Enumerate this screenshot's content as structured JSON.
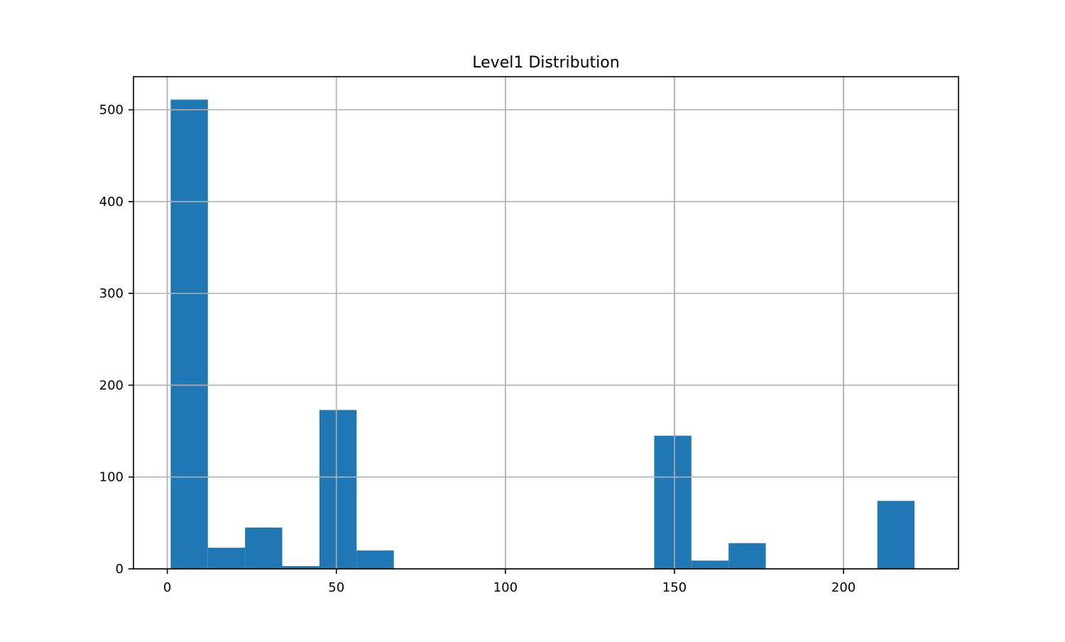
{
  "chart_data": {
    "type": "bar",
    "title": "Level1 Distribution",
    "xlabel": "",
    "ylabel": "",
    "xlim": [
      -10,
      234
    ],
    "ylim": [
      0,
      536
    ],
    "grid": true,
    "bar_color": "#1f77b4",
    "grid_color": "#b0b0b0",
    "bins": [
      {
        "x0": 1,
        "x1": 12,
        "value": 511
      },
      {
        "x0": 12,
        "x1": 23,
        "value": 23
      },
      {
        "x0": 23,
        "x1": 34,
        "value": 45
      },
      {
        "x0": 34,
        "x1": 45,
        "value": 3
      },
      {
        "x0": 45,
        "x1": 56,
        "value": 173
      },
      {
        "x0": 56,
        "x1": 67,
        "value": 20
      },
      {
        "x0": 67,
        "x1": 78,
        "value": 0
      },
      {
        "x0": 78,
        "x1": 89,
        "value": 0
      },
      {
        "x0": 89,
        "x1": 100,
        "value": 0
      },
      {
        "x0": 100,
        "x1": 111,
        "value": 0
      },
      {
        "x0": 111,
        "x1": 122,
        "value": 0
      },
      {
        "x0": 122,
        "x1": 133,
        "value": 0
      },
      {
        "x0": 133,
        "x1": 144,
        "value": 0
      },
      {
        "x0": 144,
        "x1": 155,
        "value": 145
      },
      {
        "x0": 155,
        "x1": 166,
        "value": 9
      },
      {
        "x0": 166,
        "x1": 177,
        "value": 28
      },
      {
        "x0": 177,
        "x1": 188,
        "value": 0
      },
      {
        "x0": 188,
        "x1": 199,
        "value": 0
      },
      {
        "x0": 199,
        "x1": 210,
        "value": 0
      },
      {
        "x0": 210,
        "x1": 221,
        "value": 74
      }
    ],
    "x_ticks": [
      {
        "value": 0,
        "label": "0"
      },
      {
        "value": 50,
        "label": "50"
      },
      {
        "value": 100,
        "label": "100"
      },
      {
        "value": 150,
        "label": "150"
      },
      {
        "value": 200,
        "label": "200"
      }
    ],
    "y_ticks": [
      {
        "value": 0,
        "label": "0"
      },
      {
        "value": 100,
        "label": "100"
      },
      {
        "value": 200,
        "label": "200"
      },
      {
        "value": 300,
        "label": "300"
      },
      {
        "value": 400,
        "label": "400"
      },
      {
        "value": 500,
        "label": "500"
      }
    ]
  }
}
